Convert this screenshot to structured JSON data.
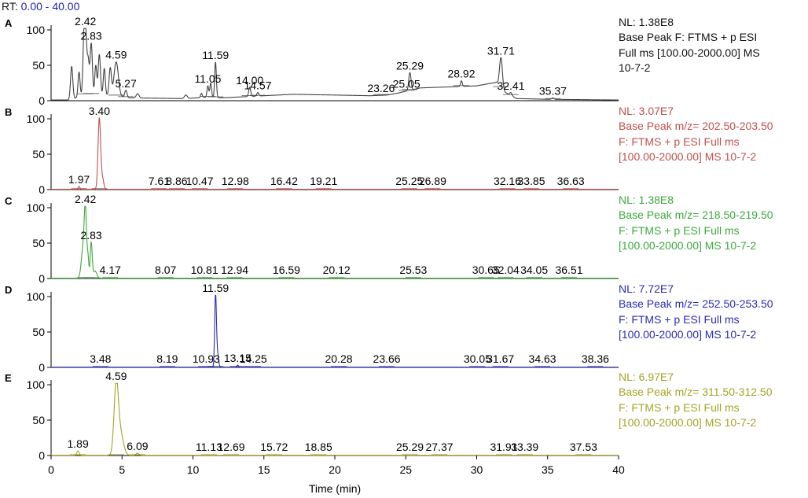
{
  "header": {
    "rt_label": "RT:",
    "rt_range": "0.00 - 40.00"
  },
  "chart_data": {
    "type": "line",
    "xlabel": "Time (min)",
    "xlim": [
      0,
      40
    ],
    "x_ticks": [
      "0",
      "5",
      "10",
      "15",
      "20",
      "25",
      "30",
      "35",
      "40"
    ],
    "y_ticks": [
      "0",
      "50",
      "100"
    ],
    "panels": [
      {
        "id": "A",
        "color": "#404040",
        "info": [
          "NL: 1.38E8",
          "Base Peak F: FTMS + p ESI",
          "Full ms [100.00-2000.00]  MS",
          "10-7-2"
        ],
        "baseline": [
          [
            0,
            1
          ],
          [
            1.4,
            1
          ],
          [
            1.9,
            5
          ],
          [
            2.6,
            10
          ],
          [
            3.3,
            7
          ],
          [
            4.2,
            8
          ],
          [
            5.5,
            4
          ],
          [
            9.5,
            3
          ],
          [
            11,
            5
          ],
          [
            12,
            4
          ],
          [
            14,
            6
          ],
          [
            17,
            9
          ],
          [
            20,
            8
          ],
          [
            22.5,
            7
          ],
          [
            23.7,
            8
          ],
          [
            24.5,
            11
          ],
          [
            26,
            18
          ],
          [
            30,
            21
          ],
          [
            31.4,
            26
          ],
          [
            32,
            12
          ],
          [
            32.8,
            3
          ],
          [
            35,
            2
          ],
          [
            40,
            1
          ]
        ],
        "peaks": [
          {
            "t": 1.45,
            "h": 47,
            "w": 0.08
          },
          {
            "t": 1.97,
            "h": 35,
            "w": 0.07
          },
          {
            "t": 2.3,
            "h": 52,
            "w": 0.07
          },
          {
            "t": 2.42,
            "h": 93,
            "w": 0.09
          },
          {
            "t": 2.62,
            "h": 42,
            "w": 0.07
          },
          {
            "t": 2.83,
            "h": 72,
            "w": 0.08
          },
          {
            "t": 3.15,
            "h": 42,
            "w": 0.07
          },
          {
            "t": 3.4,
            "h": 58,
            "w": 0.08
          },
          {
            "t": 3.75,
            "h": 38,
            "w": 0.07
          },
          {
            "t": 4.17,
            "h": 38,
            "w": 0.08
          },
          {
            "t": 4.59,
            "h": 48,
            "w": 0.15
          },
          {
            "t": 5.27,
            "h": 10,
            "w": 0.08
          },
          {
            "t": 6.1,
            "h": 6,
            "w": 0.1
          },
          {
            "t": 9.5,
            "h": 5,
            "w": 0.1
          },
          {
            "t": 10.6,
            "h": 6,
            "w": 0.06
          },
          {
            "t": 11.05,
            "h": 16,
            "w": 0.06
          },
          {
            "t": 11.25,
            "h": 20,
            "w": 0.06
          },
          {
            "t": 11.59,
            "h": 50,
            "w": 0.06
          },
          {
            "t": 14.0,
            "h": 13,
            "w": 0.07
          },
          {
            "t": 14.57,
            "h": 5,
            "w": 0.07
          },
          {
            "t": 25.29,
            "h": 25,
            "w": 0.08
          },
          {
            "t": 28.92,
            "h": 8,
            "w": 0.06
          },
          {
            "t": 31.71,
            "h": 42,
            "w": 0.1
          },
          {
            "t": 32.41,
            "h": 4,
            "w": 0.08
          },
          {
            "t": 35.37,
            "h": 2,
            "w": 0.08
          }
        ],
        "labels": [
          {
            "t": 2.42,
            "text": "2.42"
          },
          {
            "t": 2.83,
            "text": "2.83"
          },
          {
            "t": 4.59,
            "text": "4.59"
          },
          {
            "t": 5.27,
            "text": "5.27"
          },
          {
            "t": 11.05,
            "text": "11.05"
          },
          {
            "t": 11.59,
            "text": "11.59"
          },
          {
            "t": 14.0,
            "text": "14.00"
          },
          {
            "t": 14.57,
            "text": "14.57"
          },
          {
            "t": 23.26,
            "text": "23.26"
          },
          {
            "t": 25.05,
            "text": "25.05"
          },
          {
            "t": 25.29,
            "text": "25.29"
          },
          {
            "t": 28.92,
            "text": "28.92"
          },
          {
            "t": 31.71,
            "text": "31.71"
          },
          {
            "t": 32.41,
            "text": "32.41"
          },
          {
            "t": 35.37,
            "text": "35.37"
          }
        ]
      },
      {
        "id": "B",
        "color": "#c0504d",
        "info": [
          "NL: 3.07E7",
          "Base Peak m/z= 202.50-203.50",
          "F: FTMS + p ESI Full ms",
          "[100.00-2000.00]  MS 10-7-2"
        ],
        "baseline": [
          [
            0,
            0.5
          ],
          [
            40,
            0.5
          ]
        ],
        "peaks": [
          {
            "t": 1.97,
            "h": 4,
            "w": 0.06
          },
          {
            "t": 3.4,
            "h": 100,
            "w": 0.09
          },
          {
            "t": 3.62,
            "h": 15,
            "w": 0.09
          }
        ],
        "labels": [
          {
            "t": 1.97,
            "text": "1.97"
          },
          {
            "t": 3.4,
            "text": "3.40"
          },
          {
            "t": 7.61,
            "text": "7.61"
          },
          {
            "t": 8.86,
            "text": "8.86"
          },
          {
            "t": 10.47,
            "text": "10.47"
          },
          {
            "t": 12.98,
            "text": "12.98"
          },
          {
            "t": 16.42,
            "text": "16.42"
          },
          {
            "t": 19.21,
            "text": "19.21"
          },
          {
            "t": 25.25,
            "text": "25.25"
          },
          {
            "t": 26.89,
            "text": "26.89"
          },
          {
            "t": 32.16,
            "text": "32.16"
          },
          {
            "t": 33.85,
            "text": "33.85"
          },
          {
            "t": 36.63,
            "text": "36.63"
          }
        ]
      },
      {
        "id": "C",
        "color": "#3ca93c",
        "info": [
          "NL: 1.38E8",
          "Base Peak m/z= 218.50-219.50",
          "F: FTMS + p ESI Full ms",
          "[100.00-2000.00]  MS 10-7-2"
        ],
        "baseline": [
          [
            0,
            0.5
          ],
          [
            40,
            0.5
          ]
        ],
        "peaks": [
          {
            "t": 2.25,
            "h": 42,
            "w": 0.12
          },
          {
            "t": 2.42,
            "h": 90,
            "w": 0.08
          },
          {
            "t": 2.6,
            "h": 28,
            "w": 0.06
          },
          {
            "t": 2.83,
            "h": 50,
            "w": 0.07
          },
          {
            "t": 3.1,
            "h": 10,
            "w": 0.12
          }
        ],
        "labels": [
          {
            "t": 2.42,
            "text": "2.42"
          },
          {
            "t": 2.83,
            "text": "2.83"
          },
          {
            "t": 4.17,
            "text": "4.17"
          },
          {
            "t": 8.07,
            "text": "8.07"
          },
          {
            "t": 10.81,
            "text": "10.81"
          },
          {
            "t": 12.94,
            "text": "12.94"
          },
          {
            "t": 16.59,
            "text": "16.59"
          },
          {
            "t": 20.12,
            "text": "20.12"
          },
          {
            "t": 25.53,
            "text": "25.53"
          },
          {
            "t": 30.65,
            "text": "30.65"
          },
          {
            "t": 32.04,
            "text": "32.04"
          },
          {
            "t": 34.05,
            "text": "34.05"
          },
          {
            "t": 36.51,
            "text": "36.51"
          }
        ]
      },
      {
        "id": "D",
        "color": "#2b2bb0",
        "info": [
          "NL: 7.72E7",
          "Base Peak m/z= 252.50-253.50",
          "F: FTMS + p ESI Full ms",
          "[100.00-2000.00]  MS 10-7-2"
        ],
        "baseline": [
          [
            0,
            0.3
          ],
          [
            40,
            0.3
          ]
        ],
        "peaks": [
          {
            "t": 11.59,
            "h": 100,
            "w": 0.06
          },
          {
            "t": 11.72,
            "h": 20,
            "w": 0.08
          },
          {
            "t": 13.15,
            "h": 3,
            "w": 0.06
          }
        ],
        "labels": [
          {
            "t": 3.48,
            "text": "3.48"
          },
          {
            "t": 8.19,
            "text": "8.19"
          },
          {
            "t": 10.93,
            "text": "10.93"
          },
          {
            "t": 11.59,
            "text": "11.59"
          },
          {
            "t": 13.15,
            "text": "13.15"
          },
          {
            "t": 14.25,
            "text": "14.25"
          },
          {
            "t": 20.28,
            "text": "20.28"
          },
          {
            "t": 23.66,
            "text": "23.66"
          },
          {
            "t": 30.05,
            "text": "30.05"
          },
          {
            "t": 31.67,
            "text": "31.67"
          },
          {
            "t": 34.63,
            "text": "34.63"
          },
          {
            "t": 38.36,
            "text": "38.36"
          }
        ]
      },
      {
        "id": "E",
        "color": "#a6a325",
        "info": [
          "NL: 6.97E7",
          "Base Peak m/z= 311.50-312.50",
          "F: FTMS + p ESI Full ms",
          "[100.00-2000.00]  MS 10-7-2"
        ],
        "baseline": [
          [
            0,
            0.4
          ],
          [
            40,
            0.4
          ]
        ],
        "peaks": [
          {
            "t": 1.89,
            "h": 6,
            "w": 0.08
          },
          {
            "t": 4.59,
            "h": 100,
            "w": 0.15
          },
          {
            "t": 4.9,
            "h": 30,
            "w": 0.2
          },
          {
            "t": 6.09,
            "h": 3,
            "w": 0.1
          }
        ],
        "labels": [
          {
            "t": 1.89,
            "text": "1.89"
          },
          {
            "t": 4.59,
            "text": "4.59"
          },
          {
            "t": 6.09,
            "text": "6.09"
          },
          {
            "t": 11.13,
            "text": "11.13"
          },
          {
            "t": 12.69,
            "text": "12.69"
          },
          {
            "t": 15.72,
            "text": "15.72"
          },
          {
            "t": 18.85,
            "text": "18.85"
          },
          {
            "t": 25.29,
            "text": "25.29"
          },
          {
            "t": 27.37,
            "text": "27.37"
          },
          {
            "t": 31.91,
            "text": "31.91"
          },
          {
            "t": 33.39,
            "text": "33.39"
          },
          {
            "t": 37.53,
            "text": "37.53"
          }
        ]
      }
    ]
  }
}
